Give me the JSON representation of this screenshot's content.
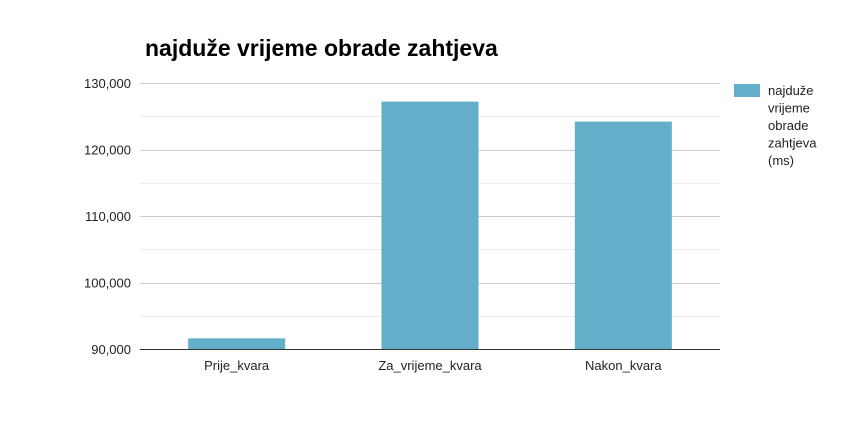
{
  "chart_data": {
    "type": "bar",
    "title": "najduže vrijeme obrade zahtjeva",
    "categories": [
      "Prije_kvara",
      "Za_vrijeme_kvara",
      "Nakon_kvara"
    ],
    "series": [
      {
        "name": "najduže vrijeme obrade zahtjeva (ms)",
        "legend_lines": [
          "najduže",
          "vrijeme",
          "obrade",
          "zahtjeva",
          "(ms)"
        ],
        "values": [
          91600,
          127200,
          124200
        ],
        "color": "#63afc9"
      }
    ],
    "ylim": [
      90000,
      130000
    ],
    "yticks": [
      "90,000",
      "100,000",
      "110,000",
      "120,000",
      "130,000"
    ],
    "ytick_values": [
      90000,
      100000,
      110000,
      120000,
      130000
    ],
    "grid": true,
    "legend": "right"
  }
}
